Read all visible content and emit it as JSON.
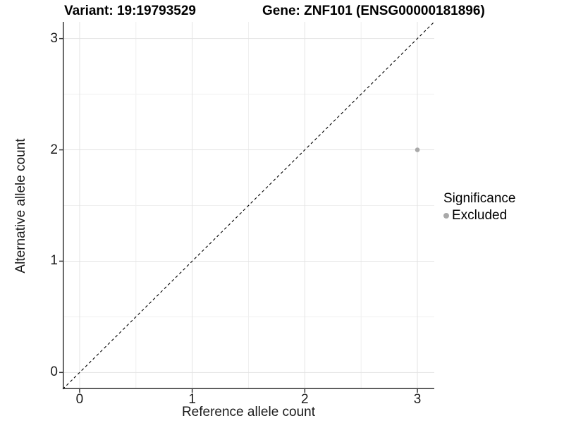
{
  "header": {
    "variant_title": "Variant: 19:19793529",
    "gene_title": "Gene: ZNF101 (ENSG00000181896)"
  },
  "axes": {
    "x_label": "Reference allele count",
    "y_label": "Alternative allele count"
  },
  "legend": {
    "title": "Significance",
    "items": [
      {
        "label": "Excluded",
        "marker": "circle-icon",
        "color": "#a9a9a9"
      }
    ]
  },
  "colors": {
    "background": "#ffffff",
    "axis_line": "#333333",
    "major_grid": "#e3e3e3",
    "minor_grid": "#f0f0f0",
    "reference_line": "#000000",
    "point": "#a9a9a9",
    "text": "#000000"
  },
  "chart_data": {
    "type": "scatter",
    "title": "Variant: 19:19793529   Gene: ZNF101 (ENSG00000181896)",
    "xlabel": "Reference allele count",
    "ylabel": "Alternative allele count",
    "xlim": [
      -0.15,
      3.15
    ],
    "ylim": [
      -0.15,
      3.15
    ],
    "xticks": [
      0,
      1,
      2,
      3
    ],
    "yticks": [
      0,
      1,
      2,
      3
    ],
    "minor_xticks": [
      0.5,
      1.5,
      2.5
    ],
    "minor_yticks": [
      0.5,
      1.5,
      2.5
    ],
    "grid": true,
    "legend_position": "right",
    "series": [
      {
        "name": "Excluded",
        "color": "#a9a9a9",
        "points": [
          {
            "x": 3,
            "y": 2
          }
        ]
      }
    ],
    "reference_line": {
      "type": "identity",
      "slope": 1,
      "intercept": 0,
      "style": "dashed",
      "color": "#000000"
    }
  }
}
